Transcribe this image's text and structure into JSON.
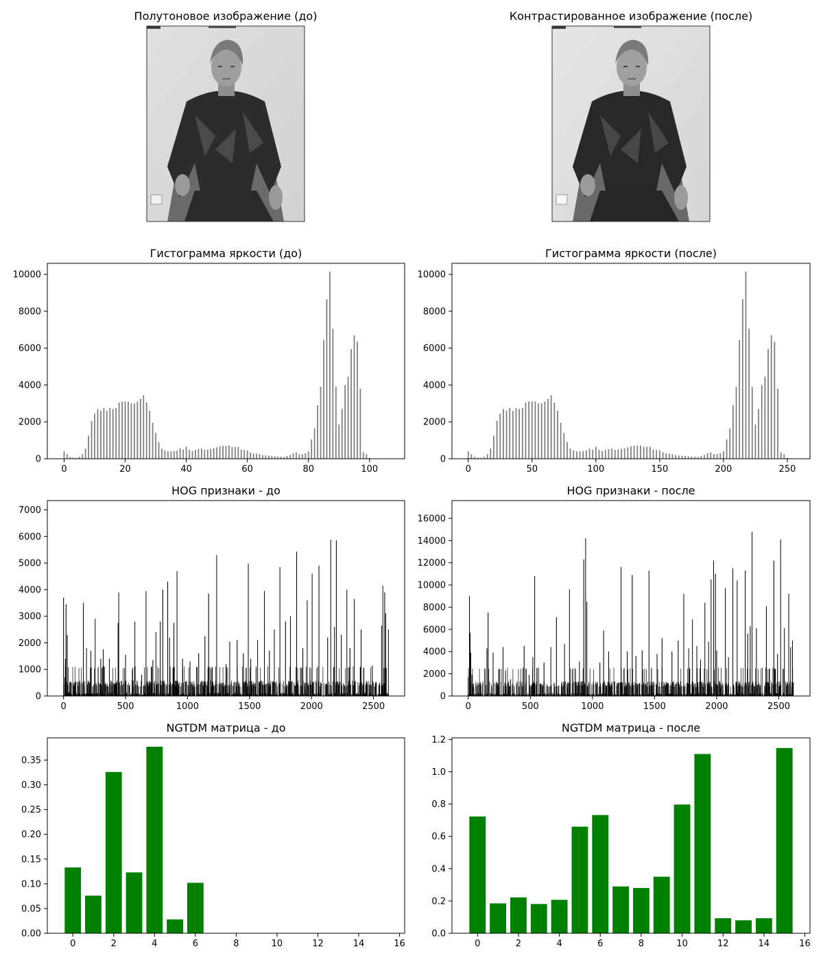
{
  "figure": {
    "titles": [
      "Полутоновое изображение (до)",
      "Контрастированное изображение (после)"
    ]
  },
  "images": [
    {
      "title": "Полутоновое изображение (до)",
      "content": "grayscale photo of a young man with light hair, dark patterned sweater, seated on a chair against a light wall"
    },
    {
      "title": "Контрастированное изображение (после)",
      "content": "same photo after contrast adjustment"
    }
  ],
  "colors": {
    "hist_bar": "#808080",
    "hog_bar": "#000000",
    "ngtdm_bar": "#008000",
    "axes": "#000000"
  },
  "chart_data": [
    {
      "type": "bar",
      "title": "Гистограмма яркости (до)",
      "xlabel": "",
      "ylabel": "",
      "xlim": [
        -5.5,
        111.5
      ],
      "ylim": [
        0,
        10600
      ],
      "xticks": [
        0,
        20,
        40,
        60,
        80,
        100
      ],
      "yticks": [
        0,
        2000,
        4000,
        6000,
        8000,
        10000
      ],
      "x": [
        0,
        1,
        2,
        3,
        4,
        5,
        6,
        7,
        8,
        9,
        10,
        11,
        12,
        13,
        14,
        15,
        16,
        17,
        18,
        19,
        20,
        21,
        22,
        23,
        24,
        25,
        26,
        27,
        28,
        29,
        30,
        31,
        32,
        33,
        34,
        35,
        36,
        37,
        38,
        39,
        40,
        41,
        42,
        43,
        44,
        45,
        46,
        47,
        48,
        49,
        50,
        51,
        52,
        53,
        54,
        55,
        56,
        57,
        58,
        59,
        60,
        61,
        62,
        63,
        64,
        65,
        66,
        67,
        68,
        69,
        70,
        71,
        72,
        73,
        74,
        75,
        76,
        77,
        78,
        79,
        80,
        81,
        82,
        83,
        84,
        85,
        86,
        87,
        88,
        89,
        90,
        91,
        92,
        93,
        94,
        95,
        96,
        97,
        98,
        99,
        100
      ],
      "values": [
        400,
        250,
        100,
        60,
        50,
        100,
        250,
        550,
        1250,
        2050,
        2450,
        2700,
        2600,
        2750,
        2600,
        2750,
        2700,
        2750,
        3050,
        3100,
        3100,
        3100,
        3000,
        3000,
        3100,
        3250,
        3450,
        3050,
        2600,
        1950,
        1400,
        900,
        550,
        450,
        400,
        400,
        420,
        450,
        550,
        500,
        650,
        480,
        420,
        480,
        520,
        550,
        480,
        500,
        530,
        570,
        620,
        680,
        700,
        700,
        720,
        650,
        650,
        650,
        500,
        480,
        450,
        350,
        300,
        280,
        250,
        200,
        180,
        170,
        150,
        130,
        120,
        110,
        100,
        150,
        200,
        300,
        350,
        250,
        250,
        300,
        400,
        1050,
        1650,
        2900,
        3900,
        6450,
        8650,
        10150,
        7050,
        3900,
        1850,
        2700,
        4000,
        4450,
        5950,
        6700,
        6350,
        3800,
        350,
        250,
        50
      ]
    },
    {
      "type": "bar",
      "title": "Гистограмма яркости (после)",
      "xlabel": "",
      "ylabel": "",
      "xlim": [
        -12.75,
        267.75
      ],
      "ylim": [
        0,
        10600
      ],
      "xticks": [
        0,
        50,
        100,
        150,
        200,
        250
      ],
      "yticks": [
        0,
        2000,
        4000,
        6000,
        8000,
        10000
      ],
      "x": [
        0,
        2.5,
        5,
        7.5,
        10,
        12.5,
        15,
        17.5,
        20,
        22.5,
        25,
        27.5,
        30,
        32.5,
        35,
        37.5,
        40,
        42.5,
        45,
        47.5,
        50,
        52.5,
        55,
        57.5,
        60,
        62.5,
        65,
        67.5,
        70,
        72.5,
        75,
        77.5,
        80,
        82.5,
        85,
        87.5,
        90,
        92.5,
        95,
        97.5,
        100,
        102.5,
        105,
        107.5,
        110,
        112.5,
        115,
        117.5,
        120,
        122.5,
        125,
        127.5,
        130,
        132.5,
        135,
        137.5,
        140,
        142.5,
        145,
        147.5,
        150,
        152.5,
        155,
        157.5,
        160,
        162.5,
        165,
        167.5,
        170,
        172.5,
        175,
        177.5,
        180,
        182.5,
        185,
        187.5,
        190,
        192.5,
        195,
        197.5,
        200,
        202.5,
        205,
        207.5,
        210,
        212.5,
        215,
        217.5,
        220,
        222.5,
        225,
        227.5,
        230,
        232.5,
        235,
        237.5,
        240,
        242.5,
        245,
        247.5,
        250
      ],
      "values": [
        400,
        250,
        100,
        60,
        50,
        100,
        250,
        550,
        1250,
        2050,
        2450,
        2700,
        2600,
        2750,
        2600,
        2750,
        2700,
        2750,
        3050,
        3100,
        3100,
        3100,
        3000,
        3000,
        3100,
        3250,
        3450,
        3050,
        2600,
        1950,
        1400,
        900,
        550,
        450,
        400,
        400,
        420,
        450,
        550,
        500,
        650,
        480,
        420,
        480,
        520,
        550,
        480,
        500,
        530,
        570,
        620,
        680,
        700,
        700,
        720,
        650,
        650,
        650,
        500,
        480,
        450,
        350,
        300,
        280,
        250,
        200,
        180,
        170,
        150,
        130,
        120,
        110,
        100,
        150,
        200,
        300,
        350,
        250,
        250,
        300,
        400,
        1050,
        1650,
        2900,
        3900,
        6450,
        8650,
        10150,
        7050,
        3900,
        1850,
        2700,
        4000,
        4450,
        5950,
        6700,
        6350,
        3800,
        350,
        250,
        50
      ]
    },
    {
      "type": "bar",
      "title": "HOG признаки - до",
      "xlabel": "",
      "ylabel": "",
      "xlim": [
        -131,
        2751
      ],
      "ylim": [
        0,
        7350
      ],
      "xticks": [
        0,
        500,
        1000,
        1500,
        2000,
        2500
      ],
      "yticks": [
        0,
        1000,
        2000,
        3000,
        4000,
        5000,
        6000,
        7000
      ],
      "x_count": 2620,
      "peaks": [
        [
          0,
          3700
        ],
        [
          10,
          700
        ],
        [
          15,
          1400
        ],
        [
          20,
          3450
        ],
        [
          30,
          2300
        ],
        [
          40,
          150
        ],
        [
          160,
          3500
        ],
        [
          185,
          1800
        ],
        [
          220,
          1700
        ],
        [
          255,
          2900
        ],
        [
          300,
          1400
        ],
        [
          320,
          1750
        ],
        [
          370,
          1400
        ],
        [
          440,
          2750
        ],
        [
          445,
          3900
        ],
        [
          500,
          1550
        ],
        [
          555,
          1000
        ],
        [
          575,
          2800
        ],
        [
          630,
          800
        ],
        [
          665,
          3950
        ],
        [
          720,
          1350
        ],
        [
          745,
          2400
        ],
        [
          780,
          2800
        ],
        [
          800,
          4000
        ],
        [
          840,
          4300
        ],
        [
          855,
          2200
        ],
        [
          890,
          2750
        ],
        [
          915,
          4700
        ],
        [
          960,
          1400
        ],
        [
          1020,
          1300
        ],
        [
          1090,
          1600
        ],
        [
          1140,
          2250
        ],
        [
          1170,
          3850
        ],
        [
          1235,
          5300
        ],
        [
          1310,
          1200
        ],
        [
          1340,
          2050
        ],
        [
          1400,
          2100
        ],
        [
          1450,
          1600
        ],
        [
          1490,
          4980
        ],
        [
          1510,
          1400
        ],
        [
          1565,
          2100
        ],
        [
          1620,
          3950
        ],
        [
          1660,
          1700
        ],
        [
          1700,
          2500
        ],
        [
          1745,
          4850
        ],
        [
          1790,
          2800
        ],
        [
          1830,
          3000
        ],
        [
          1880,
          5430
        ],
        [
          1930,
          1800
        ],
        [
          1965,
          3600
        ],
        [
          2005,
          4600
        ],
        [
          2060,
          4900
        ],
        [
          2130,
          2200
        ],
        [
          2155,
          5880
        ],
        [
          2185,
          2600
        ],
        [
          2200,
          5850
        ],
        [
          2240,
          2300
        ],
        [
          2285,
          4000
        ],
        [
          2310,
          1800
        ],
        [
          2345,
          3650
        ],
        [
          2400,
          2500
        ],
        [
          2490,
          1150
        ],
        [
          2565,
          2650
        ],
        [
          2575,
          4150
        ],
        [
          2590,
          3900
        ],
        [
          2598,
          3100
        ],
        [
          2620,
          2500
        ]
      ]
    },
    {
      "type": "bar",
      "title": "HOG признаки - после",
      "xlabel": "",
      "ylabel": "",
      "xlim": [
        -131,
        2751
      ],
      "ylim": [
        0,
        17600
      ],
      "xticks": [
        0,
        500,
        1000,
        1500,
        2000,
        2500
      ],
      "yticks": [
        0,
        2000,
        4000,
        6000,
        8000,
        10000,
        12000,
        14000,
        16000
      ],
      "x_count": 2620,
      "peaks": [
        [
          0,
          1700
        ],
        [
          10,
          9000
        ],
        [
          15,
          5700
        ],
        [
          20,
          3900
        ],
        [
          30,
          1900
        ],
        [
          150,
          4300
        ],
        [
          160,
          7500
        ],
        [
          200,
          3900
        ],
        [
          245,
          2400
        ],
        [
          280,
          4400
        ],
        [
          300,
          2300
        ],
        [
          340,
          1500
        ],
        [
          450,
          4500
        ],
        [
          490,
          1900
        ],
        [
          520,
          3500
        ],
        [
          535,
          10800
        ],
        [
          610,
          3000
        ],
        [
          665,
          4400
        ],
        [
          710,
          7100
        ],
        [
          775,
          4700
        ],
        [
          815,
          9600
        ],
        [
          895,
          3100
        ],
        [
          930,
          12300
        ],
        [
          945,
          14200
        ],
        [
          955,
          8500
        ],
        [
          1060,
          3000
        ],
        [
          1090,
          5900
        ],
        [
          1130,
          4000
        ],
        [
          1230,
          11600
        ],
        [
          1280,
          4000
        ],
        [
          1320,
          10900
        ],
        [
          1350,
          3600
        ],
        [
          1400,
          4100
        ],
        [
          1455,
          11300
        ],
        [
          1520,
          3800
        ],
        [
          1560,
          5200
        ],
        [
          1640,
          4000
        ],
        [
          1690,
          5000
        ],
        [
          1735,
          9200
        ],
        [
          1775,
          4300
        ],
        [
          1805,
          6900
        ],
        [
          1840,
          4500
        ],
        [
          1870,
          3300
        ],
        [
          1905,
          8400
        ],
        [
          1935,
          4900
        ],
        [
          1955,
          10500
        ],
        [
          1975,
          12200
        ],
        [
          1990,
          11000
        ],
        [
          2000,
          4100
        ],
        [
          2070,
          9700
        ],
        [
          2095,
          3500
        ],
        [
          2130,
          11500
        ],
        [
          2165,
          10400
        ],
        [
          2230,
          11300
        ],
        [
          2250,
          5600
        ],
        [
          2270,
          6300
        ],
        [
          2285,
          14800
        ],
        [
          2320,
          6100
        ],
        [
          2400,
          8100
        ],
        [
          2460,
          12200
        ],
        [
          2490,
          3800
        ],
        [
          2515,
          14100
        ],
        [
          2545,
          6100
        ],
        [
          2580,
          9200
        ],
        [
          2595,
          4400
        ],
        [
          2610,
          5000
        ]
      ]
    },
    {
      "type": "bar",
      "title": "NGTDM матрица - до",
      "xlabel": "",
      "ylabel": "",
      "xlim": [
        -1.25,
        16.25
      ],
      "ylim": [
        0,
        0.395
      ],
      "xticks": [
        0,
        2,
        4,
        6,
        8,
        10,
        12,
        14,
        16
      ],
      "yticks": [
        0.0,
        0.05,
        0.1,
        0.15,
        0.2,
        0.25,
        0.3,
        0.35
      ],
      "categories": [
        0,
        1,
        2,
        3,
        4,
        5,
        6,
        7,
        8,
        9,
        10,
        11,
        12,
        13,
        14,
        15
      ],
      "values": [
        0.133,
        0.076,
        0.326,
        0.123,
        0.377,
        0.028,
        0.102,
        0,
        0,
        0,
        0,
        0,
        0,
        0,
        0,
        0
      ]
    },
    {
      "type": "bar",
      "title": "NGTDM матрица - после",
      "xlabel": "",
      "ylabel": "",
      "xlim": [
        -1.25,
        16.25
      ],
      "ylim": [
        0,
        1.21
      ],
      "xticks": [
        0,
        2,
        4,
        6,
        8,
        10,
        12,
        14,
        16
      ],
      "yticks": [
        0.0,
        0.2,
        0.4,
        0.6,
        0.8,
        1.0,
        1.2
      ],
      "categories": [
        0,
        1,
        2,
        3,
        4,
        5,
        6,
        7,
        8,
        9,
        10,
        11,
        12,
        13,
        14,
        15
      ],
      "values": [
        0.723,
        0.185,
        0.222,
        0.181,
        0.207,
        0.66,
        0.732,
        0.29,
        0.28,
        0.35,
        0.797,
        1.11,
        0.093,
        0.08,
        0.093,
        1.147
      ]
    }
  ]
}
